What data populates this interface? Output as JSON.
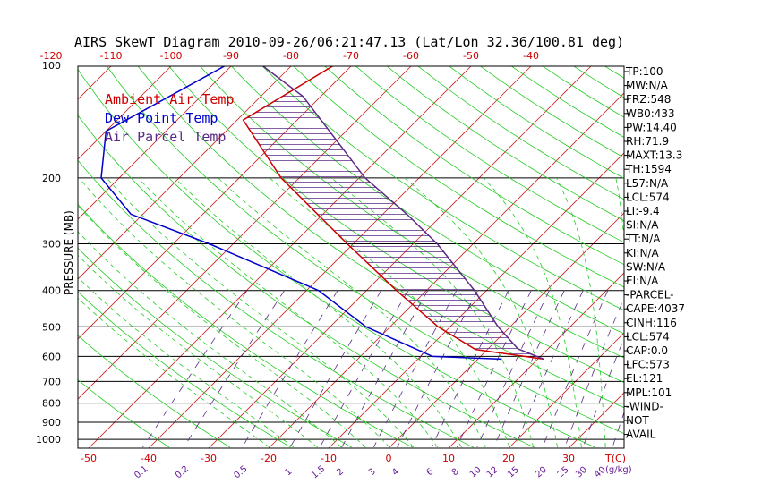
{
  "chart_data": {
    "type": "line",
    "title": "AIRS SkewT Diagram 2010-09-26/06:21:47.13 (Lat/Lon 32.36/100.81 deg)",
    "ylabel": "PRESSURE (MB)",
    "pressure_ticks": [
      100,
      200,
      300,
      400,
      500,
      600,
      700,
      800,
      900,
      1000
    ],
    "pressure_range": [
      100,
      1050
    ],
    "top_temp_ticks": [
      -120,
      -110,
      -100,
      -90,
      -80,
      -70,
      -60,
      -50,
      -40
    ],
    "bottom_temp_ticks": [
      -50,
      -40,
      -30,
      -20,
      -10,
      0,
      10,
      20,
      30
    ],
    "bottom_temp_axis_label": "T(C)",
    "mixing_ratio_labels": [
      "0.1",
      "0.2",
      "0.5",
      "1",
      "1.5",
      "2",
      "3",
      "4",
      "6",
      "8",
      "10",
      "12",
      "15",
      "20",
      "25",
      "30",
      "40"
    ],
    "mixing_ratio_axis_label": "(g/kg)",
    "legend": [
      {
        "label": "Ambient Air Temp",
        "color": "#cc0000"
      },
      {
        "label": "Dew Point Temp",
        "color": "#0000cc"
      },
      {
        "label": "Air Parcel Temp",
        "color": "#5b2a86"
      }
    ],
    "series": [
      {
        "name": "Ambient Air Temp",
        "color": "#cc0000",
        "points": [
          {
            "p": 100,
            "t": -73
          },
          {
            "p": 140,
            "t": -79
          },
          {
            "p": 200,
            "t": -63
          },
          {
            "p": 300,
            "t": -41
          },
          {
            "p": 400,
            "t": -25
          },
          {
            "p": 500,
            "t": -12
          },
          {
            "p": 575,
            "t": -2
          },
          {
            "p": 610,
            "t": 11
          }
        ]
      },
      {
        "name": "Dew Point Temp",
        "color": "#0000cc",
        "points": [
          {
            "p": 100,
            "t": -91
          },
          {
            "p": 150,
            "t": -100
          },
          {
            "p": 200,
            "t": -93
          },
          {
            "p": 250,
            "t": -82
          },
          {
            "p": 300,
            "t": -64
          },
          {
            "p": 400,
            "t": -38
          },
          {
            "p": 500,
            "t": -24
          },
          {
            "p": 600,
            "t": -8
          },
          {
            "p": 610,
            "t": 4
          }
        ]
      },
      {
        "name": "Air Parcel Temp",
        "color": "#5b2a86",
        "points": [
          {
            "p": 100,
            "t": -85
          },
          {
            "p": 121,
            "t": -73
          },
          {
            "p": 200,
            "t": -49
          },
          {
            "p": 250,
            "t": -36
          },
          {
            "p": 300,
            "t": -26
          },
          {
            "p": 400,
            "t": -12
          },
          {
            "p": 500,
            "t": -2
          },
          {
            "p": 573,
            "t": 5
          },
          {
            "p": 610,
            "t": 11
          }
        ]
      }
    ]
  },
  "stats": [
    "TP:100",
    "MW:N/A",
    "FRZ:548",
    "WB0:433",
    "PW:14.40",
    "RH:71.9",
    "MAXT:13.3",
    "TH:1594",
    "L57:N/A",
    "LCL:574",
    "LI:-9.4",
    "SI:N/A",
    "TT:N/A",
    "KI:N/A",
    "SW:N/A",
    "EI:N/A",
    "-PARCEL-",
    "CAPE:4037",
    "CINH:116",
    "LCL:574",
    "CAP:0.0",
    "LFC:573",
    "EL:121",
    "MPL:101",
    "-WIND-",
    "NOT",
    "AVAIL"
  ],
  "colors": {
    "isotherm": "#cc2222",
    "dry_adiabat": "#22cc22",
    "moist_adiabat": "#22cc22",
    "mixing_ratio": "#5b2a86",
    "isobar": "#000000"
  }
}
